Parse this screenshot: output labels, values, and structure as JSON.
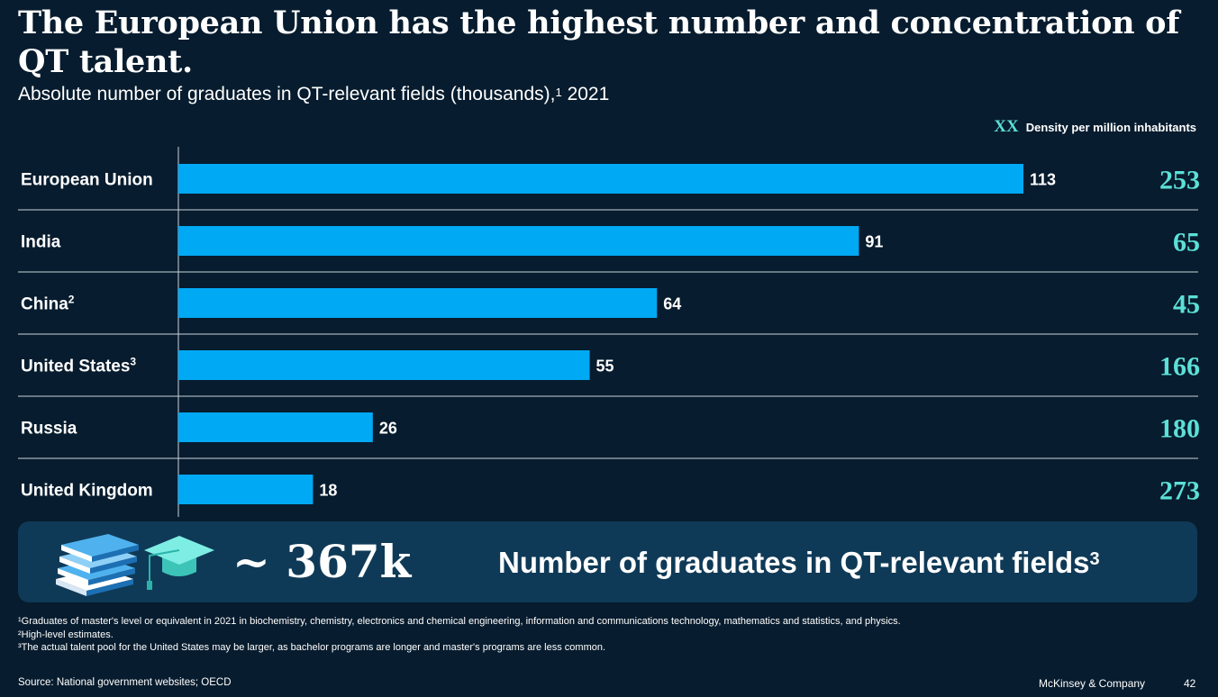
{
  "title": "The European Union has the highest number and concentration of QT talent.",
  "subtitle": {
    "text": "Absolute number of graduates in QT-relevant fields (thousands),",
    "sup": "1",
    "year": " 2021"
  },
  "legend": {
    "key": "XX",
    "text": "Density per million inhabitants"
  },
  "chart_data": {
    "type": "bar",
    "orientation": "horizontal",
    "title": "Absolute number of graduates in QT-relevant fields (thousands), 2021",
    "categories": [
      "European Union",
      "India",
      "China",
      "United States",
      "Russia",
      "United Kingdom"
    ],
    "category_sups": [
      "",
      "",
      "2",
      "3",
      "",
      ""
    ],
    "values": [
      113,
      91,
      64,
      55,
      26,
      18
    ],
    "value_labels": [
      "113",
      "91",
      "64",
      "55",
      "26",
      "18"
    ],
    "density_label": "Density per million inhabitants",
    "density": [
      253,
      65,
      45,
      166,
      180,
      273
    ],
    "density_labels": [
      "253",
      "65",
      "45",
      "166",
      "180",
      "273"
    ],
    "xlim": [
      0,
      113
    ],
    "bar_color": "#00a9f4",
    "density_color": "#5ce0d7",
    "grid": false
  },
  "banner": {
    "total": "~ 367k",
    "text": "Number of graduates in QT-relevant fields",
    "sup": "3",
    "icons": [
      "books-icon",
      "graduation-cap-icon"
    ]
  },
  "footnotes": [
    "¹Graduates of master's level or equivalent in 2021 in biochemistry, chemistry, electronics and chemical engineering, information and communications technology, mathematics and statistics, and physics.",
    "²High-level estimates.",
    "³The actual talent pool for the United States may be larger, as bachelor programs are longer and master's programs are less common."
  ],
  "source": "Source: National government websites; OECD",
  "brand": "McKinsey & Company",
  "page_number": "42",
  "colors": {
    "background": "#071c2e",
    "bar": "#00a9f4",
    "accent": "#5ce0d7",
    "banner": "#0f3a57"
  }
}
